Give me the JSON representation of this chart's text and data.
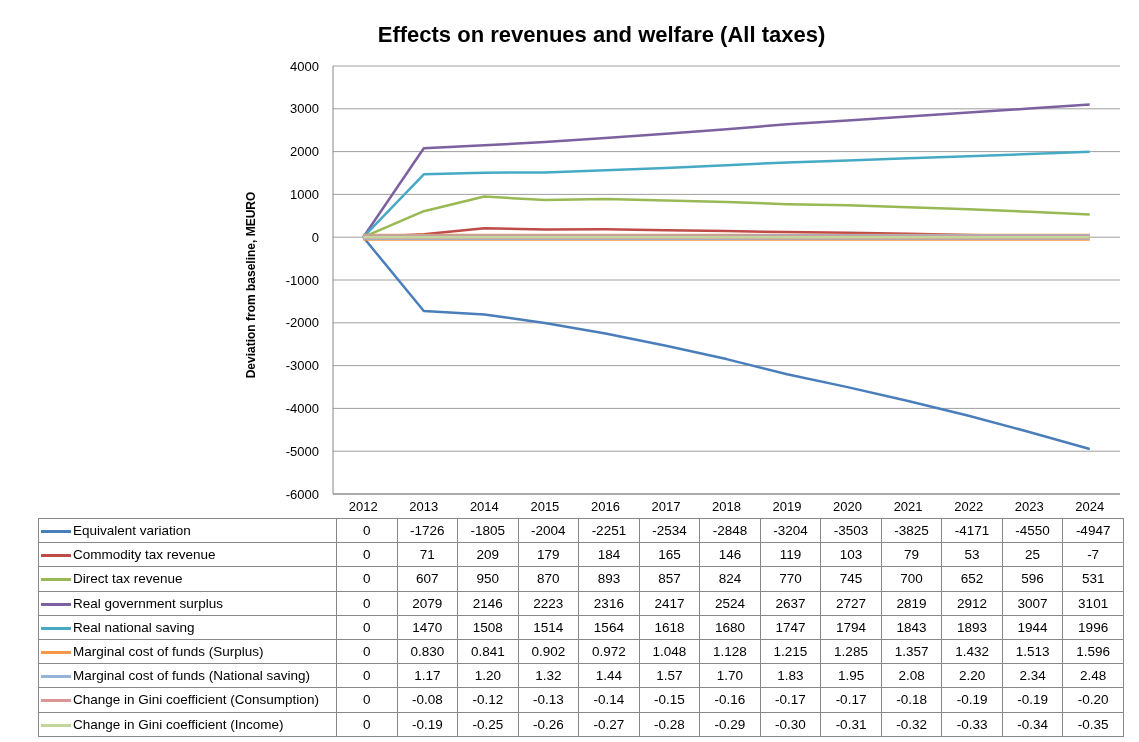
{
  "chart_data": {
    "type": "line",
    "title": "Effects on revenues and welfare (All taxes)",
    "ylabel": "Deviation from baseline, MEURO",
    "categories": [
      "2012",
      "2013",
      "2014",
      "2015",
      "2016",
      "2017",
      "2018",
      "2019",
      "2020",
      "2021",
      "2022",
      "2023",
      "2024"
    ],
    "ylim": [
      -6000,
      4000
    ],
    "yticks": [
      -6000,
      -5000,
      -4000,
      -3000,
      -2000,
      -1000,
      0,
      1000,
      2000,
      3000,
      4000
    ],
    "grid": "y",
    "legend": "bottom",
    "marker": "none",
    "line_style": "solid",
    "series": [
      {
        "name": "Equivalent variation",
        "color": "#4a7ebb",
        "values": [
          0,
          -1726,
          -1805,
          -2004,
          -2251,
          -2534,
          -2848,
          -3204,
          -3503,
          -3825,
          -4171,
          -4550,
          -4947
        ],
        "value_labels": [
          "0",
          "-1726",
          "-1805",
          "-2004",
          "-2251",
          "-2534",
          "-2848",
          "-3204",
          "-3503",
          "-3825",
          "-4171",
          "-4550",
          "-4947"
        ]
      },
      {
        "name": "Commodity tax revenue",
        "color": "#be4b48",
        "values": [
          0,
          71,
          209,
          179,
          184,
          165,
          146,
          119,
          103,
          79,
          53,
          25,
          -7
        ],
        "value_labels": [
          "0",
          "71",
          "209",
          "179",
          "184",
          "165",
          "146",
          "119",
          "103",
          "79",
          "53",
          "25",
          "-7"
        ]
      },
      {
        "name": "Direct tax revenue",
        "color": "#98b954",
        "values": [
          0,
          607,
          950,
          870,
          893,
          857,
          824,
          770,
          745,
          700,
          652,
          596,
          531
        ],
        "value_labels": [
          "0",
          "607",
          "950",
          "870",
          "893",
          "857",
          "824",
          "770",
          "745",
          "700",
          "652",
          "596",
          "531"
        ]
      },
      {
        "name": "Real government surplus",
        "color": "#7d60a0",
        "values": [
          0,
          2079,
          2146,
          2223,
          2316,
          2417,
          2524,
          2637,
          2727,
          2819,
          2912,
          3007,
          3101
        ],
        "value_labels": [
          "0",
          "2079",
          "2146",
          "2223",
          "2316",
          "2417",
          "2524",
          "2637",
          "2727",
          "2819",
          "2912",
          "3007",
          "3101"
        ]
      },
      {
        "name": "Real national saving",
        "color": "#46aac5",
        "values": [
          0,
          1470,
          1508,
          1514,
          1564,
          1618,
          1680,
          1747,
          1794,
          1843,
          1893,
          1944,
          1996
        ],
        "value_labels": [
          "0",
          "1470",
          "1508",
          "1514",
          "1564",
          "1618",
          "1680",
          "1747",
          "1794",
          "1843",
          "1893",
          "1944",
          "1996"
        ]
      },
      {
        "name": "Marginal cost of funds (Surplus)",
        "color": "#f79646",
        "values": [
          0,
          0.83,
          0.841,
          0.902,
          0.972,
          1.048,
          1.128,
          1.215,
          1.285,
          1.357,
          1.432,
          1.513,
          1.596
        ],
        "value_labels": [
          "0",
          "0.830",
          "0.841",
          "0.902",
          "0.972",
          "1.048",
          "1.128",
          "1.215",
          "1.285",
          "1.357",
          "1.432",
          "1.513",
          "1.596"
        ]
      },
      {
        "name": "Marginal cost of funds (National saving)",
        "color": "#95b3d7",
        "values": [
          0,
          1.17,
          1.2,
          1.32,
          1.44,
          1.57,
          1.7,
          1.83,
          1.95,
          2.08,
          2.2,
          2.34,
          2.48
        ],
        "value_labels": [
          "0",
          "1.17",
          "1.20",
          "1.32",
          "1.44",
          "1.57",
          "1.70",
          "1.83",
          "1.95",
          "2.08",
          "2.20",
          "2.34",
          "2.48"
        ]
      },
      {
        "name": "Change in Gini coefficient (Consumption)",
        "color": "#d99694",
        "values": [
          0,
          -0.08,
          -0.12,
          -0.13,
          -0.14,
          -0.15,
          -0.16,
          -0.17,
          -0.17,
          -0.18,
          -0.19,
          -0.19,
          -0.2
        ],
        "value_labels": [
          "0",
          "-0.08",
          "-0.12",
          "-0.13",
          "-0.14",
          "-0.15",
          "-0.16",
          "-0.17",
          "-0.17",
          "-0.18",
          "-0.19",
          "-0.19",
          "-0.20"
        ]
      },
      {
        "name": "Change in Gini coefficient (Income)",
        "color": "#c3d69b",
        "values": [
          0,
          -0.19,
          -0.25,
          -0.26,
          -0.27,
          -0.28,
          -0.29,
          -0.3,
          -0.31,
          -0.32,
          -0.33,
          -0.34,
          -0.35
        ],
        "value_labels": [
          "0",
          "-0.19",
          "-0.25",
          "-0.26",
          "-0.27",
          "-0.28",
          "-0.29",
          "-0.30",
          "-0.31",
          "-0.32",
          "-0.33",
          "-0.34",
          "-0.35"
        ]
      }
    ]
  }
}
